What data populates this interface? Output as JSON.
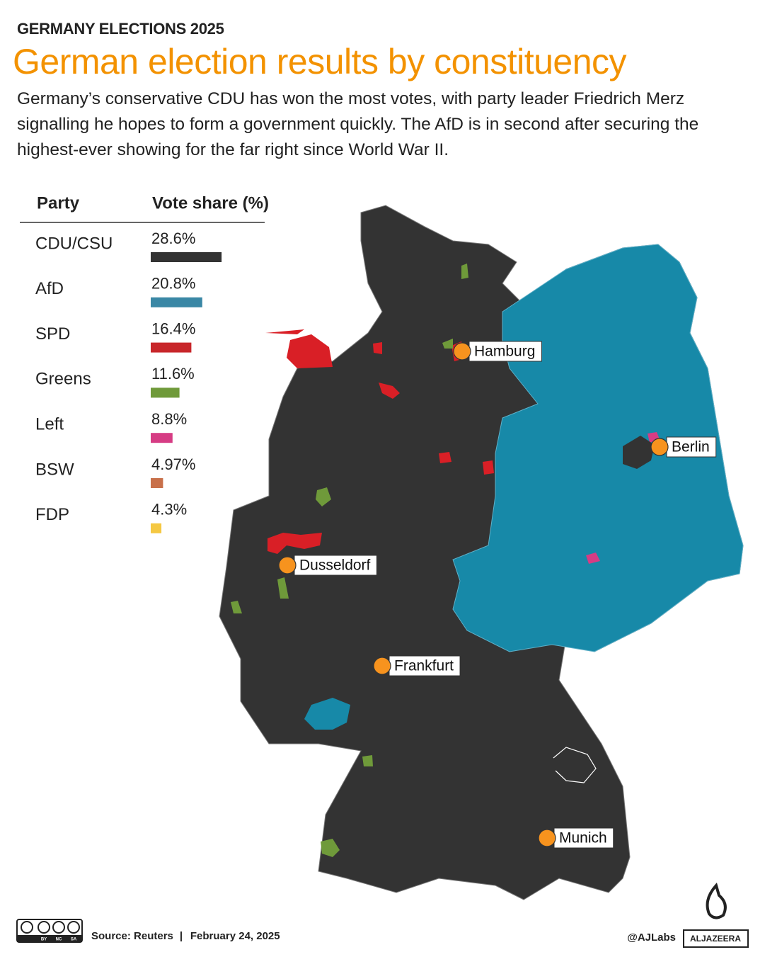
{
  "header": {
    "kicker": "GERMANY ELECTIONS 2025",
    "title": "German election results by constituency",
    "subtitle": "Germany’s conservative CDU has won the most votes, with party leader Friedrich Merz signalling he hopes to form a government quickly. The AfD is in second after securing the highest-ever showing for the far right since World War II."
  },
  "chart_data": {
    "type": "bar",
    "column_headers": [
      "Party",
      "Vote share (%)"
    ],
    "categories": [
      "CDU/CSU",
      "AfD",
      "SPD",
      "Greens",
      "Left",
      "BSW",
      "FDP"
    ],
    "values": [
      28.6,
      20.8,
      16.4,
      11.6,
      8.8,
      4.97,
      4.3
    ],
    "value_labels": [
      "28.6%",
      "20.8%",
      "16.4%",
      "11.6%",
      "8.8%",
      "4.97%",
      "4.3%"
    ],
    "colors": [
      "#333333",
      "#3a87a5",
      "#c8262a",
      "#6f9a3a",
      "#d63c84",
      "#c8704a",
      "#f5c842"
    ]
  },
  "map": {
    "cities": [
      "Hamburg",
      "Berlin",
      "Dusseldorf",
      "Frankfurt",
      "Munich"
    ]
  },
  "footer": {
    "license": [
      "BY",
      "NC",
      "SA"
    ],
    "source": "Source: Reuters",
    "separator": "|",
    "date": "February 24, 2025",
    "handle": "@AJLabs",
    "logo": "ALJAZEERA"
  }
}
